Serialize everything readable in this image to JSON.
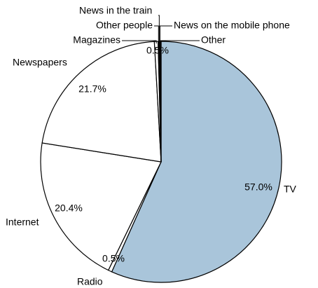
{
  "chart_data": {
    "type": "pie",
    "categories": [
      "TV",
      "Radio",
      "Internet",
      "Newspapers",
      "Magazines",
      "Other people",
      "News in the train",
      "News on the mobile phone",
      "Other"
    ],
    "values": [
      57.0,
      0.5,
      20.4,
      21.7,
      0.5,
      0.1,
      0.1,
      0.1,
      0.1
    ],
    "value_labels": [
      "57.0%",
      "0.5%",
      "20.4%",
      "21.7%",
      "0.5%",
      null,
      null,
      null,
      null
    ],
    "colors": [
      "#a9c5da",
      "#ffffff",
      "#ffffff",
      "#ffffff",
      "#ffffff",
      "#ffffff",
      "#ffffff",
      "#ffffff",
      "#ffffff"
    ]
  }
}
